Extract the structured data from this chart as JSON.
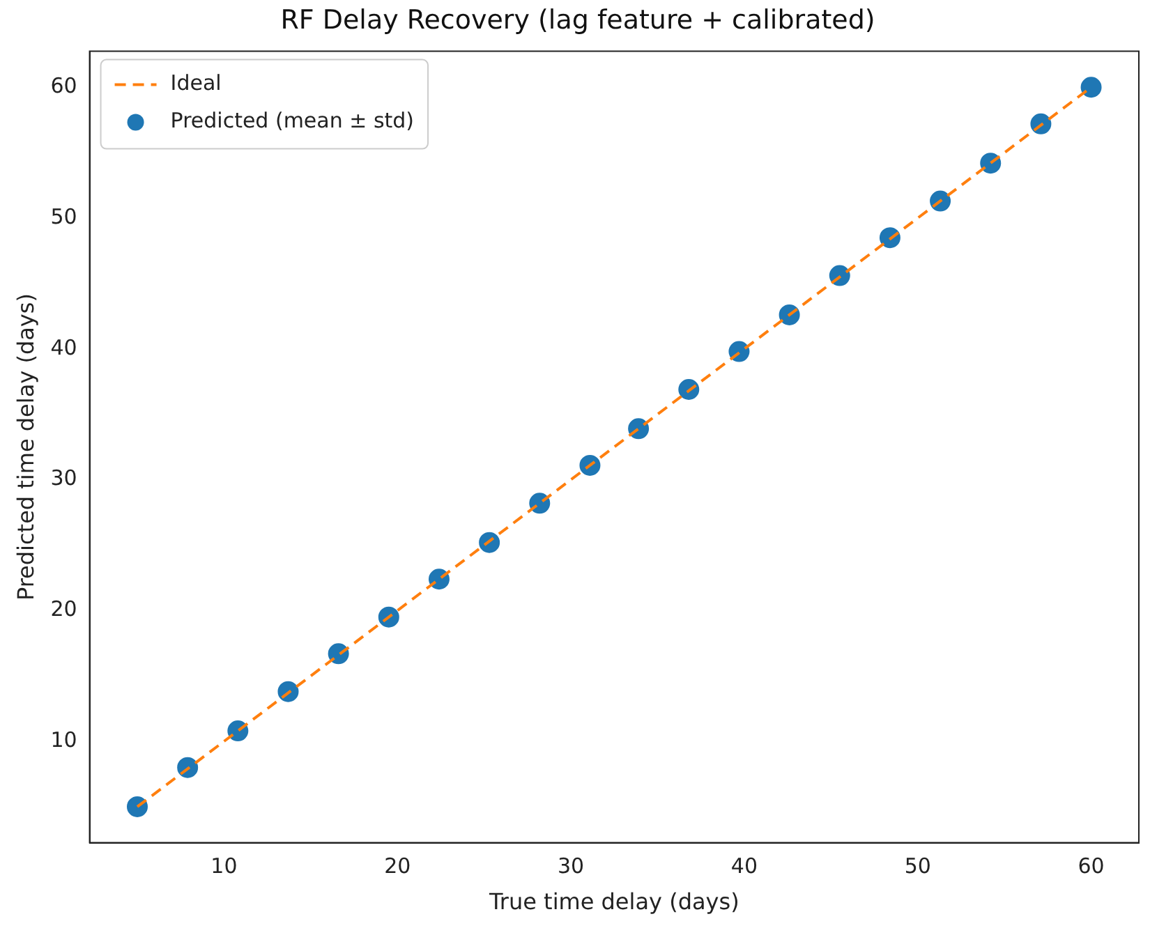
{
  "chart_data": {
    "type": "scatter",
    "title": "RF Delay Recovery (lag feature + calibrated)",
    "xlabel": "True time delay (days)",
    "ylabel": "Predicted time delay (days)",
    "xlim": [
      2.25,
      62.75
    ],
    "xticks": [
      10,
      20,
      30,
      40,
      50,
      60
    ],
    "ylim": [
      2.25,
      62.75
    ],
    "yticks": [
      10,
      20,
      30,
      40,
      50,
      60
    ],
    "grid": false,
    "legend": "top left",
    "series": [
      {
        "name": "Ideal",
        "type": "line",
        "color": "#ff7f0e",
        "line_style": "dashed",
        "marker": "none",
        "x": [
          5,
          60
        ],
        "values": [
          5,
          60
        ]
      },
      {
        "name": "Predicted (mean ± std)",
        "color": "#1f77b4",
        "marker": "circle",
        "x": [
          5,
          7.9,
          10.8,
          13.7,
          16.6,
          19.5,
          22.4,
          25.3,
          28.2,
          31.1,
          33.9,
          36.8,
          39.7,
          42.6,
          45.5,
          48.4,
          51.3,
          54.2,
          57.1,
          60
        ],
        "values": [
          5.0,
          8.0,
          10.8,
          13.8,
          16.7,
          19.5,
          22.4,
          25.2,
          28.2,
          31.1,
          33.9,
          36.9,
          39.8,
          42.6,
          45.6,
          48.5,
          51.3,
          54.2,
          57.2,
          60.0
        ]
      }
    ]
  }
}
